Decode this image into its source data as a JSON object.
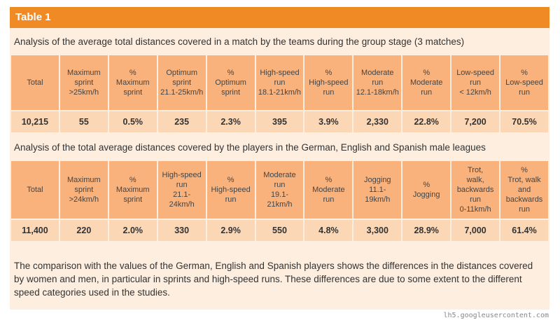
{
  "header": {
    "title": "Table 1"
  },
  "sections": [
    {
      "caption": "Analysis of the average total distances covered in a match by the teams during the group stage (3 matches)",
      "table": {
        "columns": [
          "Total",
          "Maximum\nsprint\n>25km/h",
          "%\nMaximum\nsprint",
          "Optimum\nsprint\n21.1-25km/h",
          "%\nOptimum\nsprint",
          "High-speed\nrun\n18.1-21km/h",
          "%\nHigh-speed\nrun",
          "Moderate\nrun\n12.1-18km/h",
          "%\nModerate\nrun",
          "Low-speed\nrun\n< 12km/h",
          "%\nLow-speed\nrun"
        ],
        "values": [
          "10,215",
          "55",
          "0.5%",
          "235",
          "2.3%",
          "395",
          "3.9%",
          "2,330",
          "22.8%",
          "7,200",
          "70.5%"
        ]
      }
    },
    {
      "caption": "Analysis of the total average distances covered by the players in the German, English and Spanish male leagues",
      "table": {
        "columns": [
          "Total",
          "Maximum\nsprint\n>24km/h",
          "%\nMaximum\nsprint",
          "High-speed\nrun\n21.1-\n24km/h",
          "%\nHigh-speed\nrun",
          "Moderate\nrun\n19.1-\n21km/h",
          "%\nModerate\nrun",
          "Jogging\n11.1-\n19km/h",
          "%\nJogging",
          "Trot,\nwalk,\nbackwards\nrun\n0-11km/h",
          "%\nTrot, walk\nand\nbackwards run"
        ],
        "values": [
          "11,400",
          "220",
          "2.0%",
          "330",
          "2.9%",
          "550",
          "4.8%",
          "3,300",
          "28.9%",
          "7,000",
          "61.4%"
        ]
      }
    }
  ],
  "paragraph": "The comparison with the values of the German, English and Spanish players shows the differences in the distances covered by women and men, in particular in sprints and high-speed runs. These differences are due to some extent to the different speed categories used in the studies.",
  "footer": {
    "source": "lh5.googleusercontent.com"
  }
}
